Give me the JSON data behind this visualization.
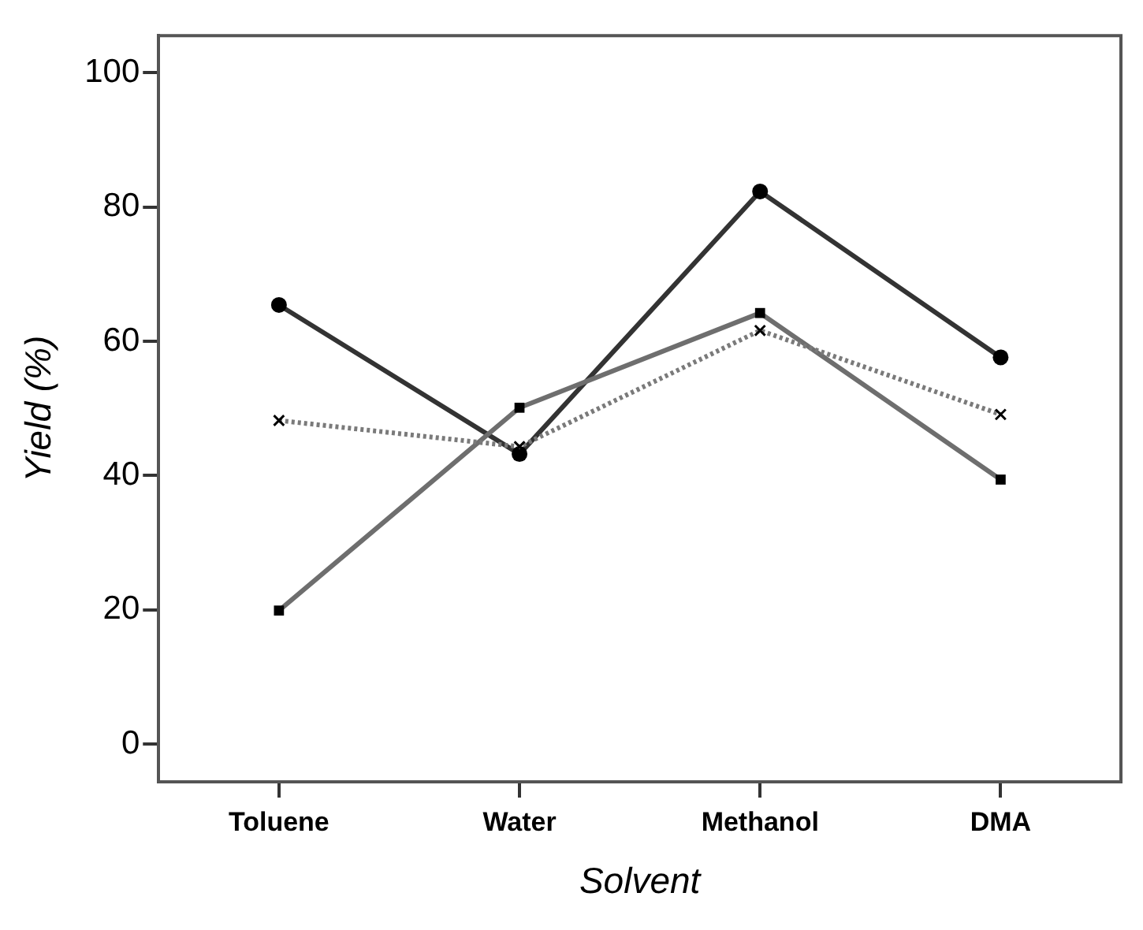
{
  "chart_data": {
    "type": "line",
    "xlabel": "Solvent",
    "ylabel": "Yield (%)",
    "categories": [
      "Toluene",
      "Water",
      "Methanol",
      "DMA"
    ],
    "series": [
      {
        "color": "#333333",
        "marker": "circle",
        "line_style": "solid",
        "values": [
          65.4,
          43.2,
          82.3,
          57.6
        ]
      },
      {
        "color": "#6e6e6e",
        "marker": "square",
        "line_style": "solid",
        "values": [
          19.9,
          50.1,
          64.2,
          39.4
        ]
      },
      {
        "color": "#7a7a7a",
        "marker": "cross",
        "line_style": "dotted",
        "values": [
          48.2,
          44.3,
          61.6,
          49.1
        ]
      }
    ],
    "ylim": [
      -5.6,
      105.5
    ],
    "yticks": [
      0,
      20,
      40,
      60,
      80,
      100
    ],
    "grid": false,
    "legend": false
  }
}
